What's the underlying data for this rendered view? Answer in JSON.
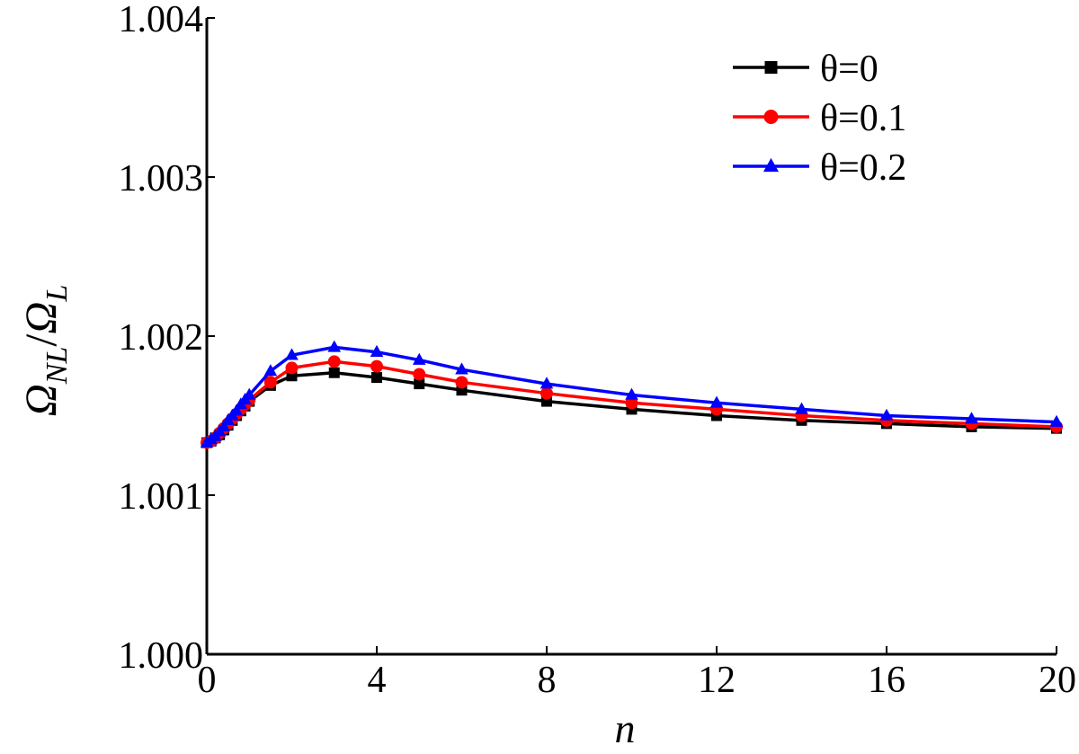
{
  "chart_data": {
    "type": "line",
    "title": "",
    "xlabel": "n",
    "ylabel": {
      "base1": "Ω",
      "sub1": "NL",
      "sep": "/",
      "base2": "Ω",
      "sub2": "L"
    },
    "xlim": [
      0,
      20
    ],
    "ylim": [
      1.0,
      1.004
    ],
    "xticks": [
      "0",
      "4",
      "8",
      "12",
      "16",
      "20"
    ],
    "yticks": [
      "1.000",
      "1.001",
      "1.002",
      "1.003",
      "1.004"
    ],
    "grid": false,
    "legend_position": "top-right",
    "x": [
      0,
      0.1,
      0.2,
      0.3,
      0.4,
      0.5,
      0.6,
      0.7,
      0.8,
      0.9,
      1.0,
      1.5,
      2,
      3,
      4,
      5,
      6,
      8,
      10,
      12,
      14,
      16,
      18,
      20
    ],
    "series": [
      {
        "name": "θ=0",
        "color": "#000000",
        "marker": "square",
        "values": [
          1.00133,
          1.00134,
          1.00136,
          1.00138,
          1.00141,
          1.00144,
          1.00147,
          1.0015,
          1.00153,
          1.00156,
          1.00159,
          1.00169,
          1.00175,
          1.00177,
          1.00174,
          1.0017,
          1.00166,
          1.00159,
          1.00154,
          1.0015,
          1.00147,
          1.00145,
          1.00143,
          1.00142
        ]
      },
      {
        "name": "θ=0.1",
        "color": "#ff0000",
        "marker": "circle",
        "values": [
          1.00133,
          1.00134,
          1.00136,
          1.00139,
          1.00142,
          1.00145,
          1.00148,
          1.00151,
          1.00154,
          1.00157,
          1.0016,
          1.00171,
          1.0018,
          1.00184,
          1.00181,
          1.00176,
          1.00171,
          1.00164,
          1.00158,
          1.00154,
          1.0015,
          1.00147,
          1.00145,
          1.00143
        ]
      },
      {
        "name": "θ=0.2",
        "color": "#0000ff",
        "marker": "triangle",
        "values": [
          1.00133,
          1.00135,
          1.00137,
          1.0014,
          1.00143,
          1.00147,
          1.0015,
          1.00153,
          1.00157,
          1.0016,
          1.00163,
          1.00178,
          1.00188,
          1.00193,
          1.0019,
          1.00185,
          1.00179,
          1.0017,
          1.00163,
          1.00158,
          1.00154,
          1.0015,
          1.00148,
          1.00146
        ]
      }
    ]
  }
}
